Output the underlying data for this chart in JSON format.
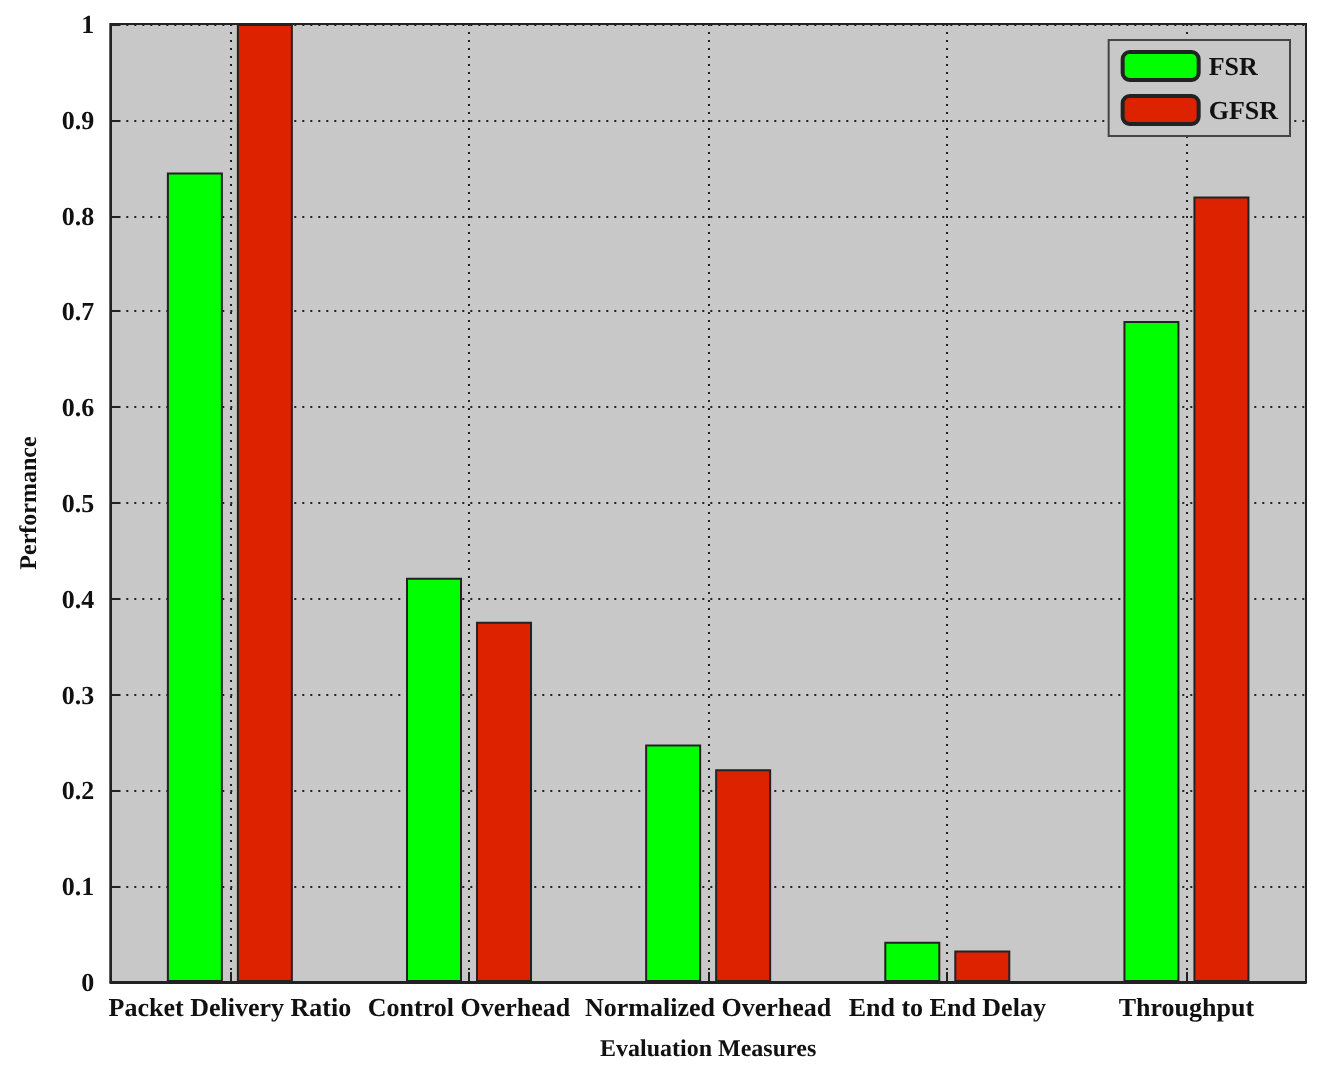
{
  "chart_data": {
    "type": "bar",
    "xlabel": "Evaluation Measures",
    "ylabel": "Performance",
    "categories": [
      "Packet Delivery Ratio",
      "Control Overhead",
      "Normalized Overhead",
      "End to End Delay",
      "Throughput"
    ],
    "series": [
      {
        "name": "FSR",
        "color": "#00ff00",
        "values": [
          0.845,
          0.422,
          0.248,
          0.042,
          0.69
        ]
      },
      {
        "name": "GFSR",
        "color": "#dd2200",
        "values": [
          1.0,
          0.376,
          0.222,
          0.033,
          0.82
        ]
      }
    ],
    "ylim": [
      0,
      1
    ],
    "yticks": [
      0,
      0.1,
      0.2,
      0.3,
      0.4,
      0.5,
      0.6,
      0.7,
      0.8,
      0.9,
      1
    ],
    "grid": true,
    "legend": "top right"
  }
}
